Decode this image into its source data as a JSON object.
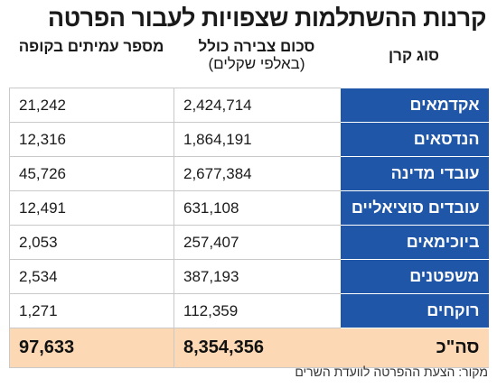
{
  "title": "קרנות ההשתלמות שצפויות לעבור הפרטה",
  "headers": {
    "fund_type": "סוג קרן",
    "total_savings": "סכום צבירה כולל",
    "total_savings_unit": "(באלפי שקלים)",
    "members": "מספר עמיתים בקופה"
  },
  "rows": [
    {
      "name": "אקדמאים",
      "savings": "2,424,714",
      "members": "21,242"
    },
    {
      "name": "הנדסאים",
      "savings": "1,864,191",
      "members": "12,316"
    },
    {
      "name": "עובדי מדינה",
      "savings": "2,677,384",
      "members": "45,726"
    },
    {
      "name": "עובדים סוציאליים",
      "savings": "631,108",
      "members": "12,491"
    },
    {
      "name": "ביוכימאים",
      "savings": "257,407",
      "members": "2,053"
    },
    {
      "name": "משפטנים",
      "savings": "387,193",
      "members": "2,534"
    },
    {
      "name": "רוקחים",
      "savings": "112,359",
      "members": "1,271"
    }
  ],
  "total": {
    "name": "סה\"כ",
    "savings": "8,354,356",
    "members": "97,633"
  },
  "source": "מקור: הצעת ההפרטה לוועדת השרים",
  "colors": {
    "row_header": "#1f56a8",
    "total_row": "#fcd9b4",
    "grid_line": "#c9c9c9"
  }
}
